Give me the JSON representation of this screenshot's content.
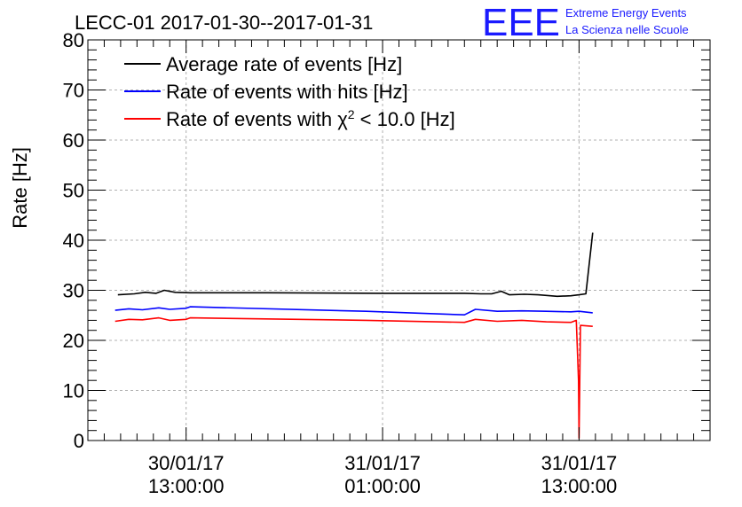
{
  "header": {
    "title": "LECC-01 2017-01-30--2017-01-31",
    "logo": "EEE",
    "logo_line1": "Extreme Energy Events",
    "logo_line2": "La Scienza nelle Scuole"
  },
  "colors": {
    "average": "#000000",
    "hits": "#0000ff",
    "chi2": "#ff0000",
    "logo": "#1a1aff",
    "grid": "#b0b0b0"
  },
  "chart_data": {
    "type": "line",
    "title": "LECC-01 2017-01-30--2017-01-31",
    "xlabel": "",
    "ylabel": "Rate [Hz]",
    "ylim": [
      0,
      80
    ],
    "xlim": [
      "2017-01-30 07:00",
      "2017-01-31 21:00"
    ],
    "yticks": [
      0,
      10,
      20,
      30,
      40,
      50,
      60,
      70,
      80
    ],
    "xticks": [
      {
        "line1": "30/01/17",
        "line2": "13:00:00",
        "x": "2017-01-30 13:00"
      },
      {
        "line1": "31/01/17",
        "line2": "01:00:00",
        "x": "2017-01-31 01:00"
      },
      {
        "line1": "31/01/17",
        "line2": "13:00:00",
        "x": "2017-01-31 13:00"
      }
    ],
    "grid": true,
    "legend_position": "top-left",
    "series": [
      {
        "name": "Average rate of events [Hz]",
        "color": "#000000",
        "points": [
          [
            "2017-01-30 08:50",
            29.1
          ],
          [
            "2017-01-30 09:50",
            29.3
          ],
          [
            "2017-01-30 10:30",
            29.6
          ],
          [
            "2017-01-30 11:10",
            29.4
          ],
          [
            "2017-01-30 11:40",
            30.0
          ],
          [
            "2017-01-30 12:20",
            29.6
          ],
          [
            "2017-01-30 13:15",
            29.5
          ],
          [
            "2017-01-30 18:00",
            29.5
          ],
          [
            "2017-01-31 01:00",
            29.4
          ],
          [
            "2017-01-31 06:00",
            29.4
          ],
          [
            "2017-01-31 07:00",
            29.3
          ],
          [
            "2017-01-31 07:40",
            29.3
          ],
          [
            "2017-01-31 08:15",
            29.8
          ],
          [
            "2017-01-31 08:45",
            29.1
          ],
          [
            "2017-01-31 09:40",
            29.2
          ],
          [
            "2017-01-31 10:30",
            29.1
          ],
          [
            "2017-01-31 11:40",
            28.8
          ],
          [
            "2017-01-31 12:30",
            28.9
          ],
          [
            "2017-01-31 13:00",
            29.1
          ],
          [
            "2017-01-31 13:25",
            29.3
          ],
          [
            "2017-01-31 13:50",
            41.5
          ]
        ]
      },
      {
        "name": "Rate of events with hits [Hz]",
        "color": "#0000ff",
        "points": [
          [
            "2017-01-30 08:40",
            26.0
          ],
          [
            "2017-01-30 09:30",
            26.3
          ],
          [
            "2017-01-30 10:20",
            26.1
          ],
          [
            "2017-01-30 11:20",
            26.5
          ],
          [
            "2017-01-30 12:00",
            26.2
          ],
          [
            "2017-01-30 13:00",
            26.4
          ],
          [
            "2017-01-30 13:15",
            26.7
          ],
          [
            "2017-01-31 00:00",
            25.8
          ],
          [
            "2017-01-31 06:00",
            25.1
          ],
          [
            "2017-01-31 06:40",
            26.2
          ],
          [
            "2017-01-31 08:00",
            25.8
          ],
          [
            "2017-01-31 09:30",
            25.9
          ],
          [
            "2017-01-31 11:00",
            25.8
          ],
          [
            "2017-01-31 12:30",
            25.7
          ],
          [
            "2017-01-31 13:00",
            25.8
          ],
          [
            "2017-01-31 13:50",
            25.5
          ]
        ]
      },
      {
        "name": "Rate of events with χ2 < 10.0 [Hz]",
        "color": "#ff0000",
        "points": [
          [
            "2017-01-30 08:40",
            23.8
          ],
          [
            "2017-01-30 09:30",
            24.2
          ],
          [
            "2017-01-30 10:20",
            24.1
          ],
          [
            "2017-01-30 11:20",
            24.5
          ],
          [
            "2017-01-30 12:00",
            24.0
          ],
          [
            "2017-01-30 13:00",
            24.2
          ],
          [
            "2017-01-30 13:15",
            24.5
          ],
          [
            "2017-01-31 00:00",
            24.0
          ],
          [
            "2017-01-31 06:00",
            23.6
          ],
          [
            "2017-01-31 06:40",
            24.2
          ],
          [
            "2017-01-31 08:00",
            23.8
          ],
          [
            "2017-01-31 09:30",
            24.0
          ],
          [
            "2017-01-31 11:00",
            23.7
          ],
          [
            "2017-01-31 12:30",
            23.6
          ],
          [
            "2017-01-31 12:50",
            24.0
          ],
          [
            "2017-01-31 12:58",
            12.0
          ],
          [
            "2017-01-31 13:00",
            0.5
          ],
          [
            "2017-01-31 13:05",
            23.0
          ],
          [
            "2017-01-31 13:50",
            22.8
          ]
        ]
      }
    ]
  }
}
